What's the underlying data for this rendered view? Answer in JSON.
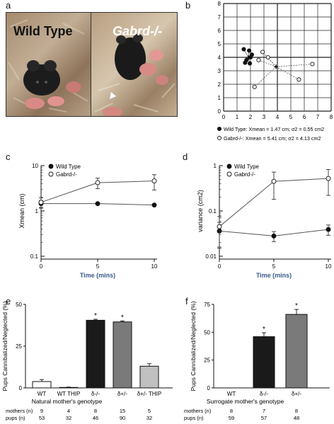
{
  "panel_a": {
    "label": "a",
    "left_title": "Wild Type",
    "right_title": "Gabrd-/-"
  },
  "chart_data": [
    {
      "id": "b",
      "label": "b",
      "type": "scatter",
      "xlim": [
        0,
        8
      ],
      "ylim": [
        0,
        8
      ],
      "xticks": [
        0,
        1,
        2,
        3,
        4,
        5,
        6,
        7,
        8
      ],
      "yticks": [
        0,
        1,
        2,
        3,
        4,
        5,
        6,
        7,
        8
      ],
      "grid": true,
      "series": [
        {
          "name": "Wild Type",
          "marker": "filled",
          "center": [
            1.85,
            4.0
          ],
          "points": [
            [
              1.5,
              4.6
            ],
            [
              1.9,
              4.5
            ],
            [
              2.0,
              4.0
            ],
            [
              1.7,
              3.8
            ],
            [
              1.95,
              3.55
            ],
            [
              1.6,
              3.6
            ],
            [
              2.1,
              4.2
            ]
          ]
        },
        {
          "name": "Gabrd-/-",
          "marker": "open",
          "center": [
            3.9,
            3.3
          ],
          "points": [
            [
              2.3,
              1.8
            ],
            [
              2.6,
              3.8
            ],
            [
              2.9,
              4.4
            ],
            [
              3.3,
              4.0
            ],
            [
              5.6,
              2.35
            ],
            [
              6.6,
              3.5
            ]
          ]
        }
      ],
      "legend": [
        {
          "marker": "filled",
          "text": "Wild Type:  Xmean = 1.47 cm; σ2 = 0.55 cm2"
        },
        {
          "marker": "open",
          "text": "Gabrd-/-:  Xmean = 5.41 cm; σ2 = 4.13 cm2"
        }
      ]
    },
    {
      "id": "c",
      "label": "c",
      "type": "line",
      "yscale": "log",
      "ylabel": "Xmean (cm)",
      "xlabel": "Time (mins)",
      "x": [
        0,
        5,
        10
      ],
      "xlim": [
        0,
        10
      ],
      "ylim": [
        0.1,
        10
      ],
      "xticks": [
        "0",
        "5",
        "10"
      ],
      "yticks": [
        "0.1",
        "1",
        "10"
      ],
      "series": [
        {
          "name": "Wild Type",
          "marker": "filled",
          "values": [
            1.45,
            1.45,
            1.35
          ],
          "err": [
            0.25,
            0.05,
            0.05
          ]
        },
        {
          "name": "Gabrd-/-",
          "marker": "open",
          "values": [
            1.55,
            4.2,
            4.6
          ],
          "err": [
            0.4,
            1.1,
            1.7
          ]
        }
      ]
    },
    {
      "id": "d",
      "label": "d",
      "type": "line",
      "yscale": "log",
      "ylabel": "variance (cm2)",
      "xlabel": "Time (mins)",
      "x": [
        0,
        5,
        10
      ],
      "xlim": [
        0,
        10
      ],
      "ylim": [
        0.01,
        1
      ],
      "xticks": [
        "0",
        "5",
        "10"
      ],
      "yticks": [
        "0.01",
        "0.1",
        "1"
      ],
      "series": [
        {
          "name": "Wild Type",
          "marker": "filled",
          "values": [
            0.036,
            0.028,
            0.039
          ],
          "err": [
            0.02,
            0.007,
            0.01
          ]
        },
        {
          "name": "Gabrd-/-",
          "marker": "open",
          "values": [
            0.045,
            0.45,
            0.52
          ],
          "err": [
            0.03,
            0.27,
            0.3
          ]
        }
      ]
    },
    {
      "id": "e",
      "label": "e",
      "type": "bar",
      "ylabel": "Pups Cannibalized/Neglected (%)",
      "xlabel": "Natural mother's genotype",
      "ylim": [
        0,
        50
      ],
      "yticks": [
        "0",
        "25",
        "50"
      ],
      "categories": [
        "WT",
        "WT THIP",
        "δ-/-",
        "δ+/-",
        "δ+/- THIP"
      ],
      "values": [
        3.8,
        0.3,
        40.5,
        39.5,
        13
      ],
      "err": [
        1.2,
        0.2,
        0.6,
        0.6,
        1.5
      ],
      "colors": [
        "#ffffff",
        "#ffffff",
        "#1a1a1a",
        "#7a7a7a",
        "#c0c0c0"
      ],
      "sig": [
        false,
        false,
        true,
        true,
        false
      ],
      "sig_marker": "*",
      "table": {
        "rows": [
          {
            "name": "mothers (n)",
            "values": [
              "9",
              "4",
              "8",
              "15",
              "5"
            ]
          },
          {
            "name": "pups (n)",
            "values": [
              "53",
              "32",
              "46",
              "90",
              "32"
            ]
          }
        ]
      }
    },
    {
      "id": "f",
      "label": "f",
      "type": "bar",
      "ylabel": "Pups Cannibalized/Neglected (%)",
      "xlabel": "Surrogate mother's genotype",
      "ylim": [
        0,
        75
      ],
      "yticks": [
        "0",
        "25",
        "50",
        "75"
      ],
      "categories": [
        "WT",
        "δ-/-",
        "δ+/-"
      ],
      "values": [
        0,
        46,
        66
      ],
      "err": [
        0,
        3.5,
        4.5
      ],
      "colors": [
        "#ffffff",
        "#1a1a1a",
        "#7a7a7a"
      ],
      "sig": [
        false,
        true,
        true
      ],
      "sig_marker": "*",
      "table": {
        "rows": [
          {
            "name": "mothers (n)",
            "values": [
              "8",
              "7",
              "8"
            ]
          },
          {
            "name": "pups (n)",
            "values": [
              "59",
              "57",
              "48"
            ]
          }
        ]
      }
    }
  ]
}
